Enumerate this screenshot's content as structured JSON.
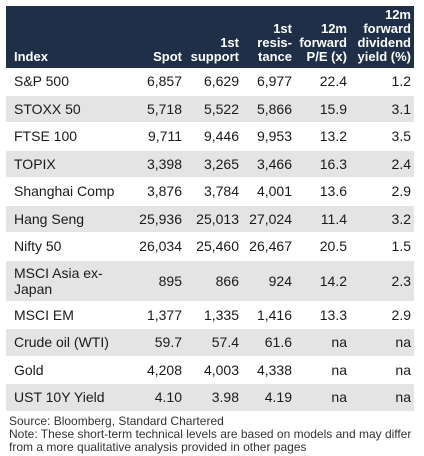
{
  "table": {
    "headers": [
      "Index",
      "Spot",
      "1st support",
      "1st resis-tance",
      "12m forward P/E (x)",
      "12m forward dividend yield (%)"
    ],
    "rows": [
      [
        "S&P 500",
        "6,857",
        "6,629",
        "6,977",
        "22.4",
        "1.2"
      ],
      [
        "STOXX 50",
        "5,718",
        "5,522",
        "5,866",
        "15.9",
        "3.1"
      ],
      [
        "FTSE 100",
        "9,711",
        "9,446",
        "9,953",
        "13.2",
        "3.5"
      ],
      [
        "TOPIX",
        "3,398",
        "3,265",
        "3,466",
        "16.3",
        "2.4"
      ],
      [
        "Shanghai Comp",
        "3,876",
        "3,784",
        "4,001",
        "13.6",
        "2.9"
      ],
      [
        "Hang Seng",
        "25,936",
        "25,013",
        "27,024",
        "11.4",
        "3.2"
      ],
      [
        "Nifty 50",
        "26,034",
        "25,460",
        "26,467",
        "20.5",
        "1.5"
      ],
      [
        "MSCI Asia ex-Japan",
        "895",
        "866",
        "924",
        "14.2",
        "2.3"
      ],
      [
        "MSCI EM",
        "1,377",
        "1,335",
        "1,416",
        "13.3",
        "2.9"
      ],
      [
        "Crude oil (WTI)",
        "59.7",
        "57.4",
        "61.6",
        "na",
        "na"
      ],
      [
        "Gold",
        "4,208",
        "4,003",
        "4,338",
        "na",
        "na"
      ],
      [
        "UST 10Y Yield",
        "4.10",
        "3.98",
        "4.19",
        "na",
        "na"
      ]
    ]
  },
  "footer": {
    "source": "Source: Bloomberg, Standard Chartered",
    "note": "Note: These short-term technical levels are based on models and may differ from a more qualitative analysis provided in other pages"
  },
  "colors": {
    "header_bg": "#1f2f47",
    "stripe": "#e4e4e4"
  }
}
